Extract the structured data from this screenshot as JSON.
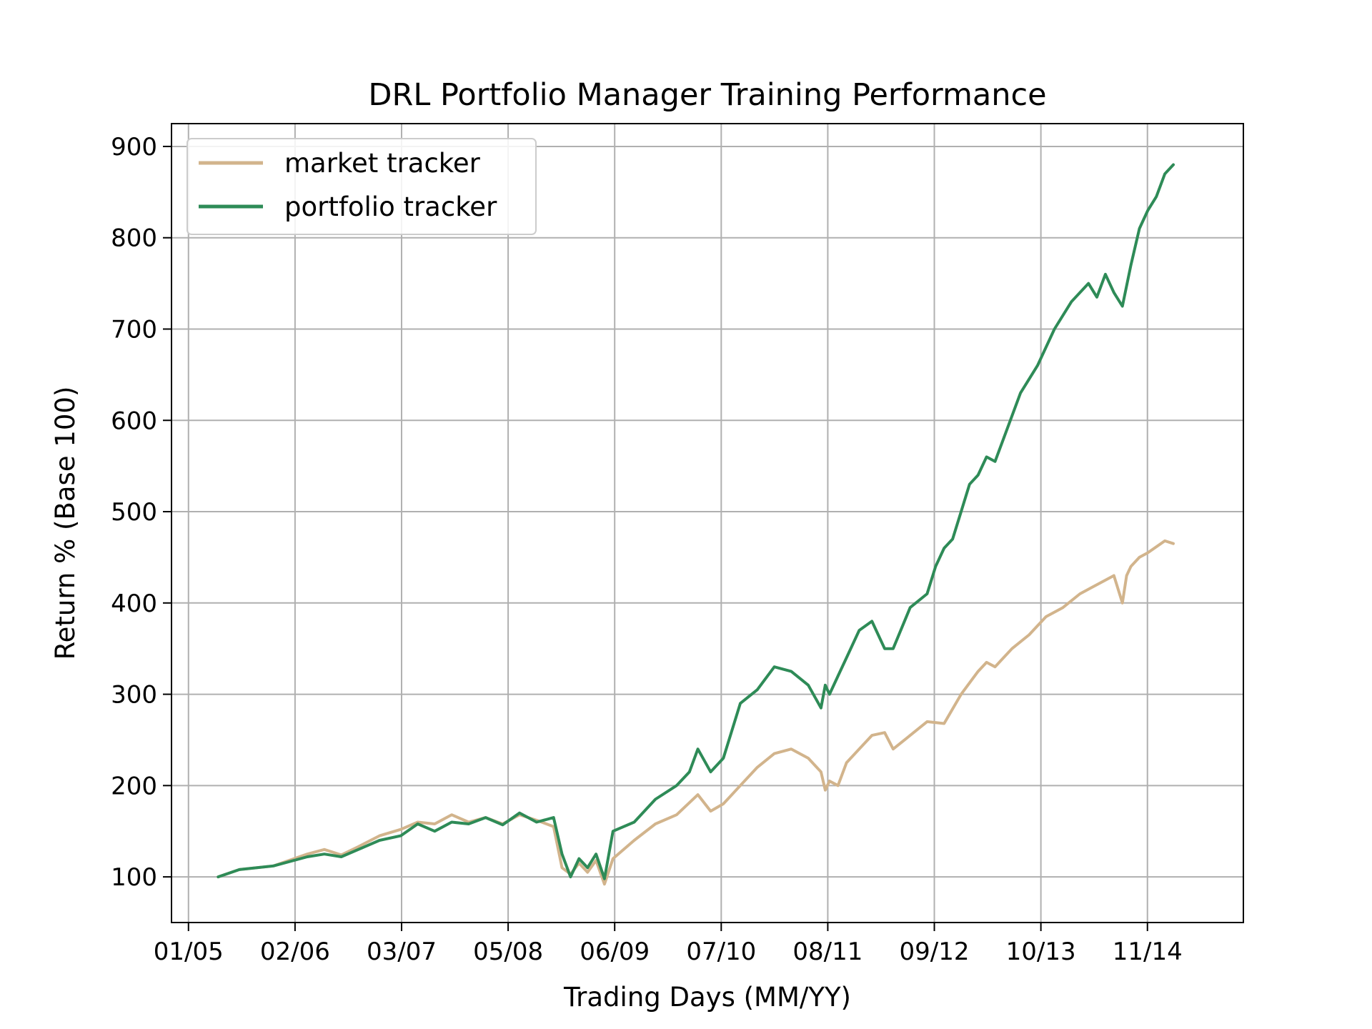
{
  "chart_data": {
    "type": "line",
    "title": "DRL Portfolio Manager Training Performance",
    "xlabel": "Trading Days (MM/YY)",
    "ylabel": "Return % (Base 100)",
    "x_range": [
      -40,
      2485
    ],
    "ylim": [
      50,
      925
    ],
    "x_ticks": [
      {
        "pos": 0,
        "label": "01/05"
      },
      {
        "pos": 251,
        "label": "02/06"
      },
      {
        "pos": 502,
        "label": "03/07"
      },
      {
        "pos": 753,
        "label": "05/08"
      },
      {
        "pos": 1004,
        "label": "06/09"
      },
      {
        "pos": 1255,
        "label": "07/10"
      },
      {
        "pos": 1506,
        "label": "08/11"
      },
      {
        "pos": 1757,
        "label": "09/12"
      },
      {
        "pos": 2008,
        "label": "10/13"
      },
      {
        "pos": 2259,
        "label": "11/14"
      }
    ],
    "y_ticks": [
      100,
      200,
      300,
      400,
      500,
      600,
      700,
      800,
      900
    ],
    "grid": true,
    "legend_position": "top-left",
    "series": [
      {
        "name": "market tracker",
        "color": "#d2b48c",
        "x": [
          70,
          120,
          200,
          280,
          320,
          360,
          400,
          450,
          500,
          540,
          580,
          620,
          660,
          700,
          740,
          780,
          820,
          860,
          880,
          900,
          920,
          940,
          960,
          980,
          1000,
          1050,
          1100,
          1150,
          1200,
          1230,
          1260,
          1300,
          1340,
          1380,
          1420,
          1460,
          1490,
          1500,
          1510,
          1530,
          1550,
          1580,
          1610,
          1640,
          1660,
          1700,
          1740,
          1780,
          1820,
          1860,
          1880,
          1900,
          1940,
          1980,
          2020,
          2060,
          2100,
          2140,
          2180,
          2200,
          2210,
          2220,
          2240,
          2260,
          2300,
          2320
        ],
        "values": [
          100,
          108,
          112,
          125,
          130,
          124,
          133,
          145,
          152,
          160,
          158,
          168,
          160,
          165,
          158,
          168,
          162,
          155,
          110,
          103,
          115,
          105,
          118,
          92,
          120,
          140,
          158,
          168,
          190,
          172,
          180,
          200,
          220,
          235,
          240,
          230,
          215,
          195,
          205,
          200,
          225,
          240,
          255,
          258,
          240,
          255,
          270,
          268,
          300,
          325,
          335,
          330,
          350,
          365,
          385,
          395,
          410,
          420,
          430,
          400,
          430,
          440,
          450,
          455,
          468,
          465
        ]
      },
      {
        "name": "portfolio tracker",
        "color": "#2e8b57",
        "x": [
          70,
          120,
          200,
          280,
          320,
          360,
          400,
          450,
          500,
          540,
          580,
          620,
          660,
          700,
          740,
          780,
          820,
          860,
          880,
          900,
          920,
          940,
          960,
          980,
          1000,
          1050,
          1100,
          1150,
          1180,
          1200,
          1230,
          1260,
          1300,
          1340,
          1380,
          1420,
          1460,
          1490,
          1500,
          1510,
          1530,
          1550,
          1580,
          1610,
          1640,
          1660,
          1700,
          1740,
          1760,
          1780,
          1800,
          1820,
          1840,
          1860,
          1880,
          1900,
          1920,
          1960,
          2000,
          2040,
          2080,
          2120,
          2140,
          2160,
          2180,
          2200,
          2220,
          2240,
          2260,
          2280,
          2300,
          2320
        ],
        "values": [
          100,
          108,
          112,
          122,
          125,
          122,
          130,
          140,
          145,
          158,
          150,
          160,
          158,
          165,
          157,
          170,
          160,
          165,
          125,
          100,
          120,
          110,
          125,
          98,
          150,
          160,
          185,
          200,
          215,
          240,
          215,
          230,
          290,
          305,
          330,
          325,
          310,
          285,
          310,
          300,
          320,
          340,
          370,
          380,
          350,
          350,
          395,
          410,
          440,
          460,
          470,
          500,
          530,
          540,
          560,
          555,
          580,
          630,
          660,
          700,
          730,
          750,
          735,
          760,
          740,
          725,
          770,
          810,
          830,
          845,
          870,
          880
        ]
      }
    ]
  }
}
